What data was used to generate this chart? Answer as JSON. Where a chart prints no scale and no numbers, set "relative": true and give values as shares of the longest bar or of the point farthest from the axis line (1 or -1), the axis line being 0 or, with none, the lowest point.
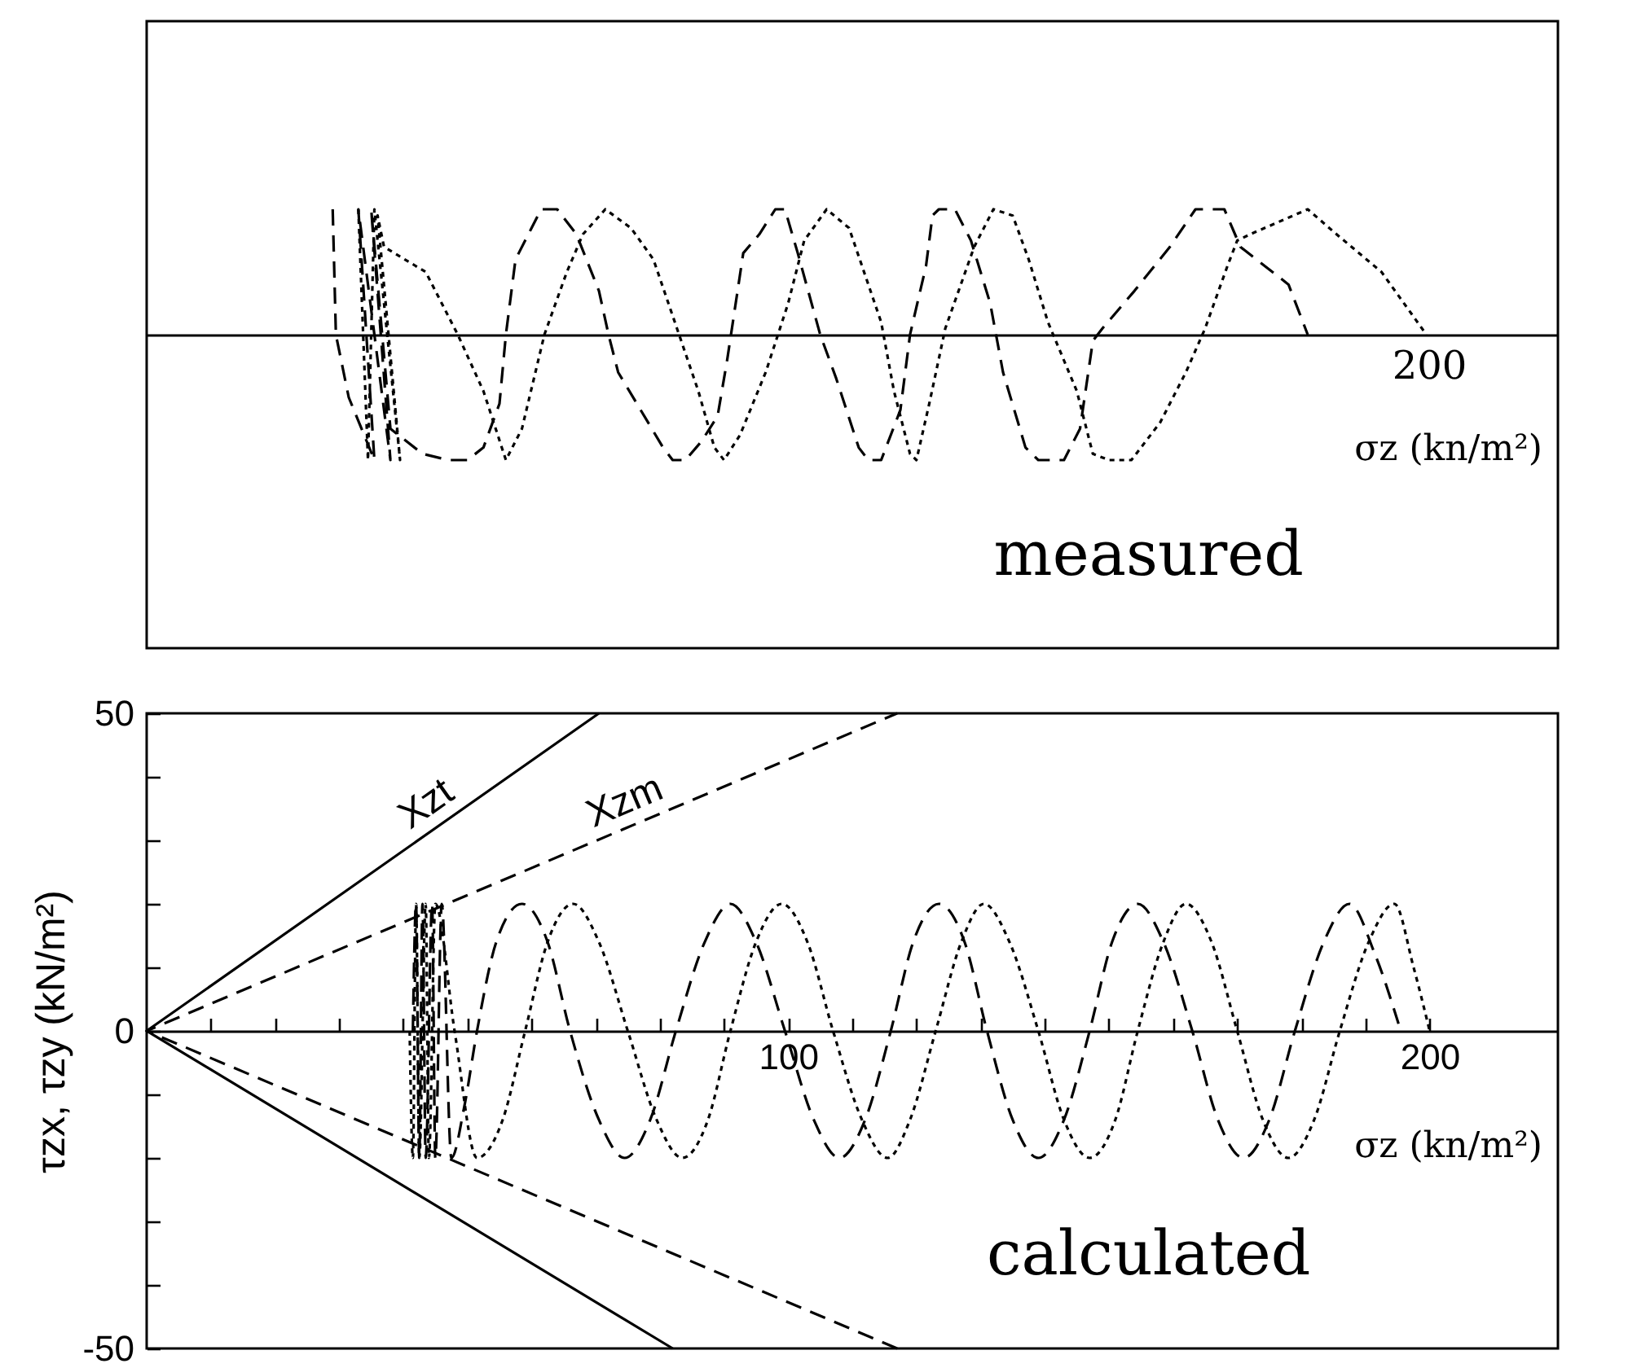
{
  "chart_data": [
    {
      "type": "line",
      "relative": true,
      "xlabel": "σz (kn/m²)",
      "annotations": [
        "measured",
        {
          "text": "200",
          "x": 200,
          "y": 0
        }
      ],
      "xlim": [
        0,
        220
      ],
      "series": [
        {
          "color": "#000000",
          "line_style": "dashed",
          "x": [
            29,
            29.5,
            31.5,
            35.5,
            33,
            38,
            35,
            38,
            43,
            47,
            50,
            52.5,
            55,
            56,
            57.5,
            60,
            61.5,
            64,
            67,
            70.5,
            72,
            73.5,
            77,
            80.5,
            82,
            84,
            86.5,
            89,
            90.5,
            93,
            95.5,
            98,
            99.5,
            101.5,
            105,
            107.5,
            111,
            112.5,
            114.5,
            117.5,
            119,
            121.5,
            122.5,
            123.5,
            126,
            128.5,
            131.5,
            133.5,
            137,
            139,
            143,
            145.5,
            147.5,
            149,
            154,
            159.5,
            163.5,
            168,
            170.5,
            178,
            181
          ],
          "values": [
            1,
            0,
            -0.5,
            -1,
            1,
            -1,
            1,
            -0.75,
            -0.95,
            -1,
            -1,
            -0.9,
            -0.55,
            0,
            0.6,
            0.85,
            1,
            1,
            0.8,
            0.35,
            0,
            -0.3,
            -0.6,
            -0.9,
            -1,
            -1,
            -0.85,
            -0.65,
            -0.2,
            0.65,
            0.8,
            1,
            1,
            0.65,
            0,
            -0.35,
            -0.9,
            -1,
            -1,
            -0.6,
            0,
            0.55,
            0.95,
            1,
            1,
            0.75,
            0.25,
            -0.3,
            -0.9,
            -1,
            -1,
            -0.75,
            -0.05,
            0.05,
            0.35,
            0.7,
            1,
            1,
            0.7,
            0.4,
            0
          ]
        },
        {
          "color": "#000000",
          "line_style": "dotted",
          "x": [
            33,
            34.5,
            35.5,
            39.5,
            36,
            37,
            43.5,
            48.5,
            52.5,
            56,
            58.5,
            62,
            65.5,
            68,
            71.5,
            75.5,
            79,
            82,
            86,
            88.5,
            90,
            92.5,
            96.5,
            100,
            102.5,
            106,
            109.5,
            112.5,
            114.5,
            116.5,
            119,
            120,
            122,
            124.5,
            129,
            132,
            135,
            137.5,
            140.5,
            145,
            147.5,
            150,
            153.5,
            158,
            162,
            165,
            168.5,
            170,
            172,
            181,
            185.5,
            192.5,
            199.5
          ],
          "values": [
            1,
            -1,
            1,
            -1,
            0.95,
            0.7,
            0.5,
            0,
            -0.45,
            -1,
            -0.75,
            0,
            0.5,
            0.8,
            1,
            0.85,
            0.6,
            0.15,
            -0.45,
            -0.9,
            -1,
            -0.8,
            -0.3,
            0.25,
            0.75,
            1,
            0.85,
            0.4,
            0.1,
            -0.45,
            -0.95,
            -1,
            -0.55,
            0.05,
            0.7,
            1,
            0.95,
            0.6,
            0.1,
            -0.45,
            -0.95,
            -1,
            -1,
            -0.7,
            -0.3,
            0.05,
            0.55,
            0.75,
            0.8,
            1,
            0.8,
            0.5,
            0
          ]
        }
      ]
    },
    {
      "type": "line",
      "xlabel": "σz (kn/m²)",
      "ylabel": "τzx, τzy (kN/m²)",
      "annotations": [
        "calculated"
      ],
      "xlim": [
        0,
        220
      ],
      "ylim": [
        -50,
        50
      ],
      "xticks": [
        {
          "value": 10,
          "label": null
        },
        {
          "value": 20,
          "label": null
        },
        {
          "value": 30,
          "label": null
        },
        {
          "value": 40,
          "label": null
        },
        {
          "value": 50,
          "label": null
        },
        {
          "value": 60,
          "label": null
        },
        {
          "value": 70,
          "label": null
        },
        {
          "value": 80,
          "label": null
        },
        {
          "value": 90,
          "label": null
        },
        100,
        {
          "value": 110,
          "label": null
        },
        {
          "value": 120,
          "label": null
        },
        {
          "value": 130,
          "label": null
        },
        {
          "value": 140,
          "label": null
        },
        {
          "value": 150,
          "label": null
        },
        {
          "value": 160,
          "label": null
        },
        {
          "value": 170,
          "label": null
        },
        {
          "value": 180,
          "label": null
        },
        {
          "value": 190,
          "label": null
        },
        200
      ],
      "yticks": [
        -50,
        {
          "value": -40,
          "label": null
        },
        {
          "value": -30,
          "label": null
        },
        {
          "value": -20,
          "label": null
        },
        {
          "value": -10,
          "label": null
        },
        0,
        {
          "value": 10,
          "label": null
        },
        {
          "value": 20,
          "label": null
        },
        {
          "value": 30,
          "label": null
        },
        {
          "value": 40,
          "label": null
        },
        50
      ],
      "series": [
        {
          "name": "Xzt",
          "color": "#000000",
          "line_style": "solid",
          "x": [
            82,
            0,
            70.5
          ],
          "values": [
            -50,
            0,
            50
          ]
        },
        {
          "name": "Xzm",
          "color": "#000000",
          "line_style": "dashed",
          "x": [
            117,
            0,
            117
          ],
          "values": [
            -50,
            0,
            50
          ]
        },
        {
          "color": "#000000",
          "line_style": "dashed",
          "x": [
            41.5,
            42,
            42.5,
            43,
            43.5,
            44.5,
            45,
            46,
            47.5,
            49.5,
            51.5,
            54.5,
            58.5,
            62.5,
            66,
            70.5,
            74.5,
            78.5,
            82.5,
            87,
            91,
            95,
            99.5,
            104,
            108,
            112,
            116,
            119.5,
            123.5,
            127.5,
            131,
            135,
            139,
            143,
            147,
            150.5,
            154.5,
            158.5,
            163,
            167,
            171,
            175,
            179,
            183.5,
            187.5,
            191.5,
            195.5
          ],
          "values": [
            0,
            20,
            -20,
            20,
            -20,
            20,
            -20,
            20,
            -20,
            -12,
            0,
            14,
            20,
            14,
            0,
            -14,
            -20,
            -14,
            0,
            14,
            20,
            14,
            0,
            -14,
            -20,
            -14,
            0,
            14,
            20,
            14,
            0,
            -14,
            -20,
            -14,
            0,
            14,
            20,
            14,
            0,
            -14,
            -20,
            -14,
            0,
            14,
            20,
            12,
            0
          ]
        },
        {
          "color": "#000000",
          "line_style": "dotted",
          "x": [
            41,
            41.5,
            42,
            42.5,
            43.5,
            44,
            45,
            48,
            51.5,
            55.5,
            59,
            62.5,
            66.5,
            70.5,
            75,
            79.5,
            83.5,
            87.5,
            91,
            95,
            99,
            103,
            107,
            111.5,
            115.5,
            119,
            123,
            127,
            130.5,
            134.5,
            139,
            143,
            147,
            151,
            154.5,
            158.5,
            162,
            166,
            170,
            174,
            178,
            182,
            186,
            190.5,
            194.5,
            197.5,
            200
          ],
          "values": [
            0,
            -20,
            20,
            -20,
            20,
            -20,
            20,
            0,
            -20,
            -14,
            0,
            14,
            20,
            14,
            0,
            -14,
            -20,
            -14,
            0,
            14,
            20,
            14,
            0,
            -14,
            -20,
            -14,
            0,
            14,
            20,
            14,
            0,
            -14,
            -20,
            -14,
            0,
            14,
            20,
            14,
            0,
            -14,
            -20,
            -14,
            0,
            14,
            20,
            10,
            0
          ]
        }
      ]
    }
  ]
}
